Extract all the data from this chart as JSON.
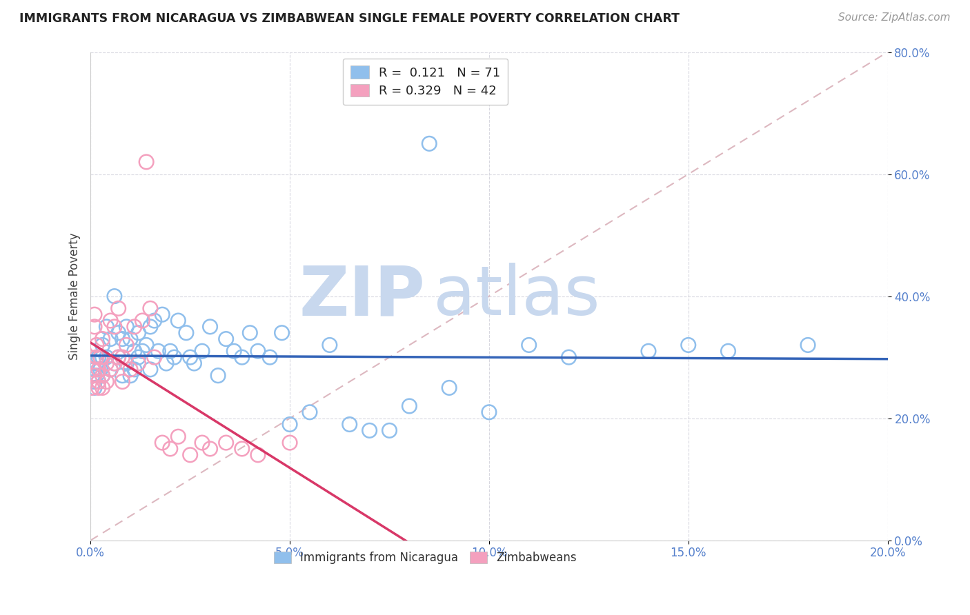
{
  "title": "IMMIGRANTS FROM NICARAGUA VS ZIMBABWEAN SINGLE FEMALE POVERTY CORRELATION CHART",
  "source": "Source: ZipAtlas.com",
  "ylabel": "Single Female Poverty",
  "legend_label1": "Immigrants from Nicaragua",
  "legend_label2": "Zimbabweans",
  "R1": 0.121,
  "N1": 71,
  "R2": 0.329,
  "N2": 42,
  "blue_color": "#90BFEC",
  "pink_color": "#F4A0BE",
  "trend_blue": "#3464B8",
  "trend_pink": "#D83868",
  "diag_color": "#DDB8C0",
  "xmin": 0.0,
  "xmax": 0.2,
  "ymin": 0.0,
  "ymax": 0.8,
  "blue_x": [
    0.0005,
    0.001,
    0.001,
    0.001,
    0.0015,
    0.0015,
    0.002,
    0.002,
    0.002,
    0.0025,
    0.003,
    0.003,
    0.003,
    0.004,
    0.004,
    0.005,
    0.005,
    0.006,
    0.006,
    0.007,
    0.007,
    0.008,
    0.008,
    0.009,
    0.009,
    0.01,
    0.01,
    0.011,
    0.011,
    0.012,
    0.012,
    0.013,
    0.014,
    0.015,
    0.015,
    0.016,
    0.017,
    0.018,
    0.019,
    0.02,
    0.021,
    0.022,
    0.024,
    0.025,
    0.026,
    0.028,
    0.03,
    0.032,
    0.034,
    0.036,
    0.038,
    0.04,
    0.042,
    0.045,
    0.048,
    0.05,
    0.055,
    0.06,
    0.065,
    0.07,
    0.075,
    0.08,
    0.085,
    0.09,
    0.1,
    0.11,
    0.12,
    0.14,
    0.15,
    0.16,
    0.18
  ],
  "blue_y": [
    0.27,
    0.25,
    0.28,
    0.26,
    0.29,
    0.27,
    0.28,
    0.26,
    0.3,
    0.28,
    0.3,
    0.32,
    0.27,
    0.35,
    0.3,
    0.33,
    0.28,
    0.4,
    0.29,
    0.34,
    0.3,
    0.33,
    0.27,
    0.35,
    0.29,
    0.33,
    0.27,
    0.31,
    0.28,
    0.34,
    0.3,
    0.31,
    0.32,
    0.35,
    0.28,
    0.36,
    0.31,
    0.37,
    0.29,
    0.31,
    0.3,
    0.36,
    0.34,
    0.3,
    0.29,
    0.31,
    0.35,
    0.27,
    0.33,
    0.31,
    0.3,
    0.34,
    0.31,
    0.3,
    0.34,
    0.19,
    0.21,
    0.32,
    0.19,
    0.18,
    0.18,
    0.22,
    0.65,
    0.25,
    0.21,
    0.32,
    0.3,
    0.31,
    0.32,
    0.31,
    0.32
  ],
  "pink_x": [
    0.0003,
    0.0005,
    0.001,
    0.001,
    0.001,
    0.0015,
    0.0015,
    0.002,
    0.002,
    0.002,
    0.0025,
    0.003,
    0.003,
    0.003,
    0.004,
    0.004,
    0.005,
    0.005,
    0.006,
    0.006,
    0.007,
    0.007,
    0.008,
    0.008,
    0.009,
    0.01,
    0.011,
    0.012,
    0.013,
    0.014,
    0.015,
    0.016,
    0.018,
    0.02,
    0.022,
    0.025,
    0.028,
    0.03,
    0.034,
    0.038,
    0.042,
    0.05
  ],
  "pink_y": [
    0.25,
    0.28,
    0.37,
    0.35,
    0.27,
    0.32,
    0.3,
    0.28,
    0.26,
    0.25,
    0.3,
    0.33,
    0.27,
    0.25,
    0.29,
    0.26,
    0.36,
    0.28,
    0.35,
    0.29,
    0.38,
    0.3,
    0.3,
    0.26,
    0.32,
    0.28,
    0.35,
    0.29,
    0.36,
    0.62,
    0.38,
    0.3,
    0.16,
    0.15,
    0.17,
    0.14,
    0.16,
    0.15,
    0.16,
    0.15,
    0.14,
    0.16
  ],
  "watermark_zip": "ZIP",
  "watermark_atlas": "atlas",
  "watermark_color": "#C8D8EE",
  "background_color": "#FFFFFF",
  "grid_color": "#D8D8E0"
}
